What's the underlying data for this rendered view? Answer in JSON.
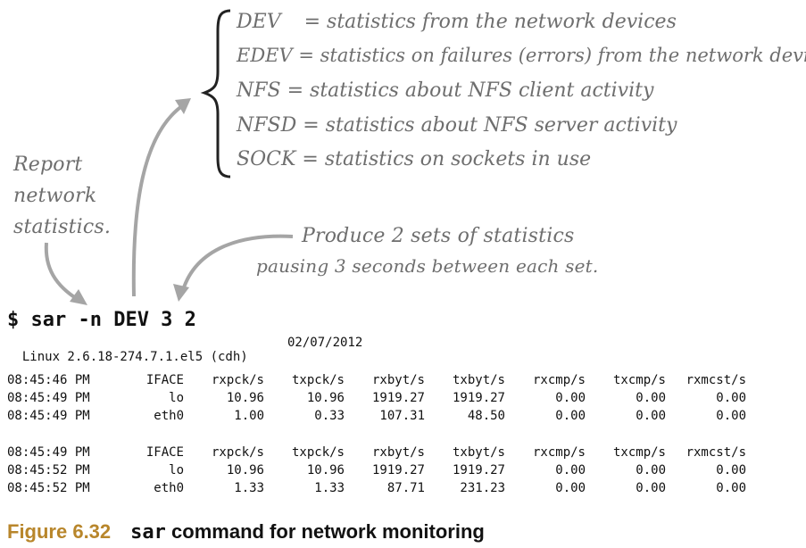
{
  "annotations": {
    "report_note": [
      "Report",
      "network",
      "statistics."
    ],
    "produce_note": [
      "Produce 2 sets of statistics",
      "pausing 3 seconds between each set."
    ]
  },
  "legend": [
    {
      "key": "DEV",
      "eq": "=",
      "desc": "statistics from the network devices"
    },
    {
      "key": "EDEV",
      "eq": "=",
      "desc": "statistics on failures (errors) from the network devices"
    },
    {
      "key": "NFS",
      "eq": "=",
      "desc": "statistics about NFS client activity"
    },
    {
      "key": "NFSD",
      "eq": "=",
      "desc": "statistics about NFS server activity"
    },
    {
      "key": "SOCK",
      "eq": "=",
      "desc": "statistics on sockets in use"
    }
  ],
  "command": "$ sar -n DEV 3 2",
  "system_line": {
    "kernel": "Linux 2.6.18-274.7.1.el5 (cdh)",
    "date": "02/07/2012"
  },
  "blocks": [
    {
      "header": [
        "08:45:46 PM",
        "IFACE",
        "rxpck/s",
        "txpck/s",
        "rxbyt/s",
        "txbyt/s",
        "rxcmp/s",
        "txcmp/s",
        "rxmcst/s"
      ],
      "rows": [
        [
          "08:45:49 PM",
          "lo",
          "10.96",
          "10.96",
          "1919.27",
          "1919.27",
          "0.00",
          "0.00",
          "0.00"
        ],
        [
          "08:45:49 PM",
          "eth0",
          "1.00",
          "0.33",
          "107.31",
          "48.50",
          "0.00",
          "0.00",
          "0.00"
        ]
      ]
    },
    {
      "header": [
        "08:45:49 PM",
        "IFACE",
        "rxpck/s",
        "txpck/s",
        "rxbyt/s",
        "txbyt/s",
        "rxcmp/s",
        "txcmp/s",
        "rxmcst/s"
      ],
      "rows": [
        [
          "08:45:52 PM",
          "lo",
          "10.96",
          "10.96",
          "1919.27",
          "1919.27",
          "0.00",
          "0.00",
          "0.00"
        ],
        [
          "08:45:52 PM",
          "eth0",
          "1.33",
          "1.33",
          "87.71",
          "231.23",
          "0.00",
          "0.00",
          "0.00"
        ]
      ]
    }
  ],
  "caption": {
    "number": "Figure 6.32",
    "code": "sar",
    "text": "command for network monitoring"
  },
  "colors": {
    "annotation": "#6e6e6e",
    "caption_number": "#b8862b",
    "text": "#111111"
  }
}
